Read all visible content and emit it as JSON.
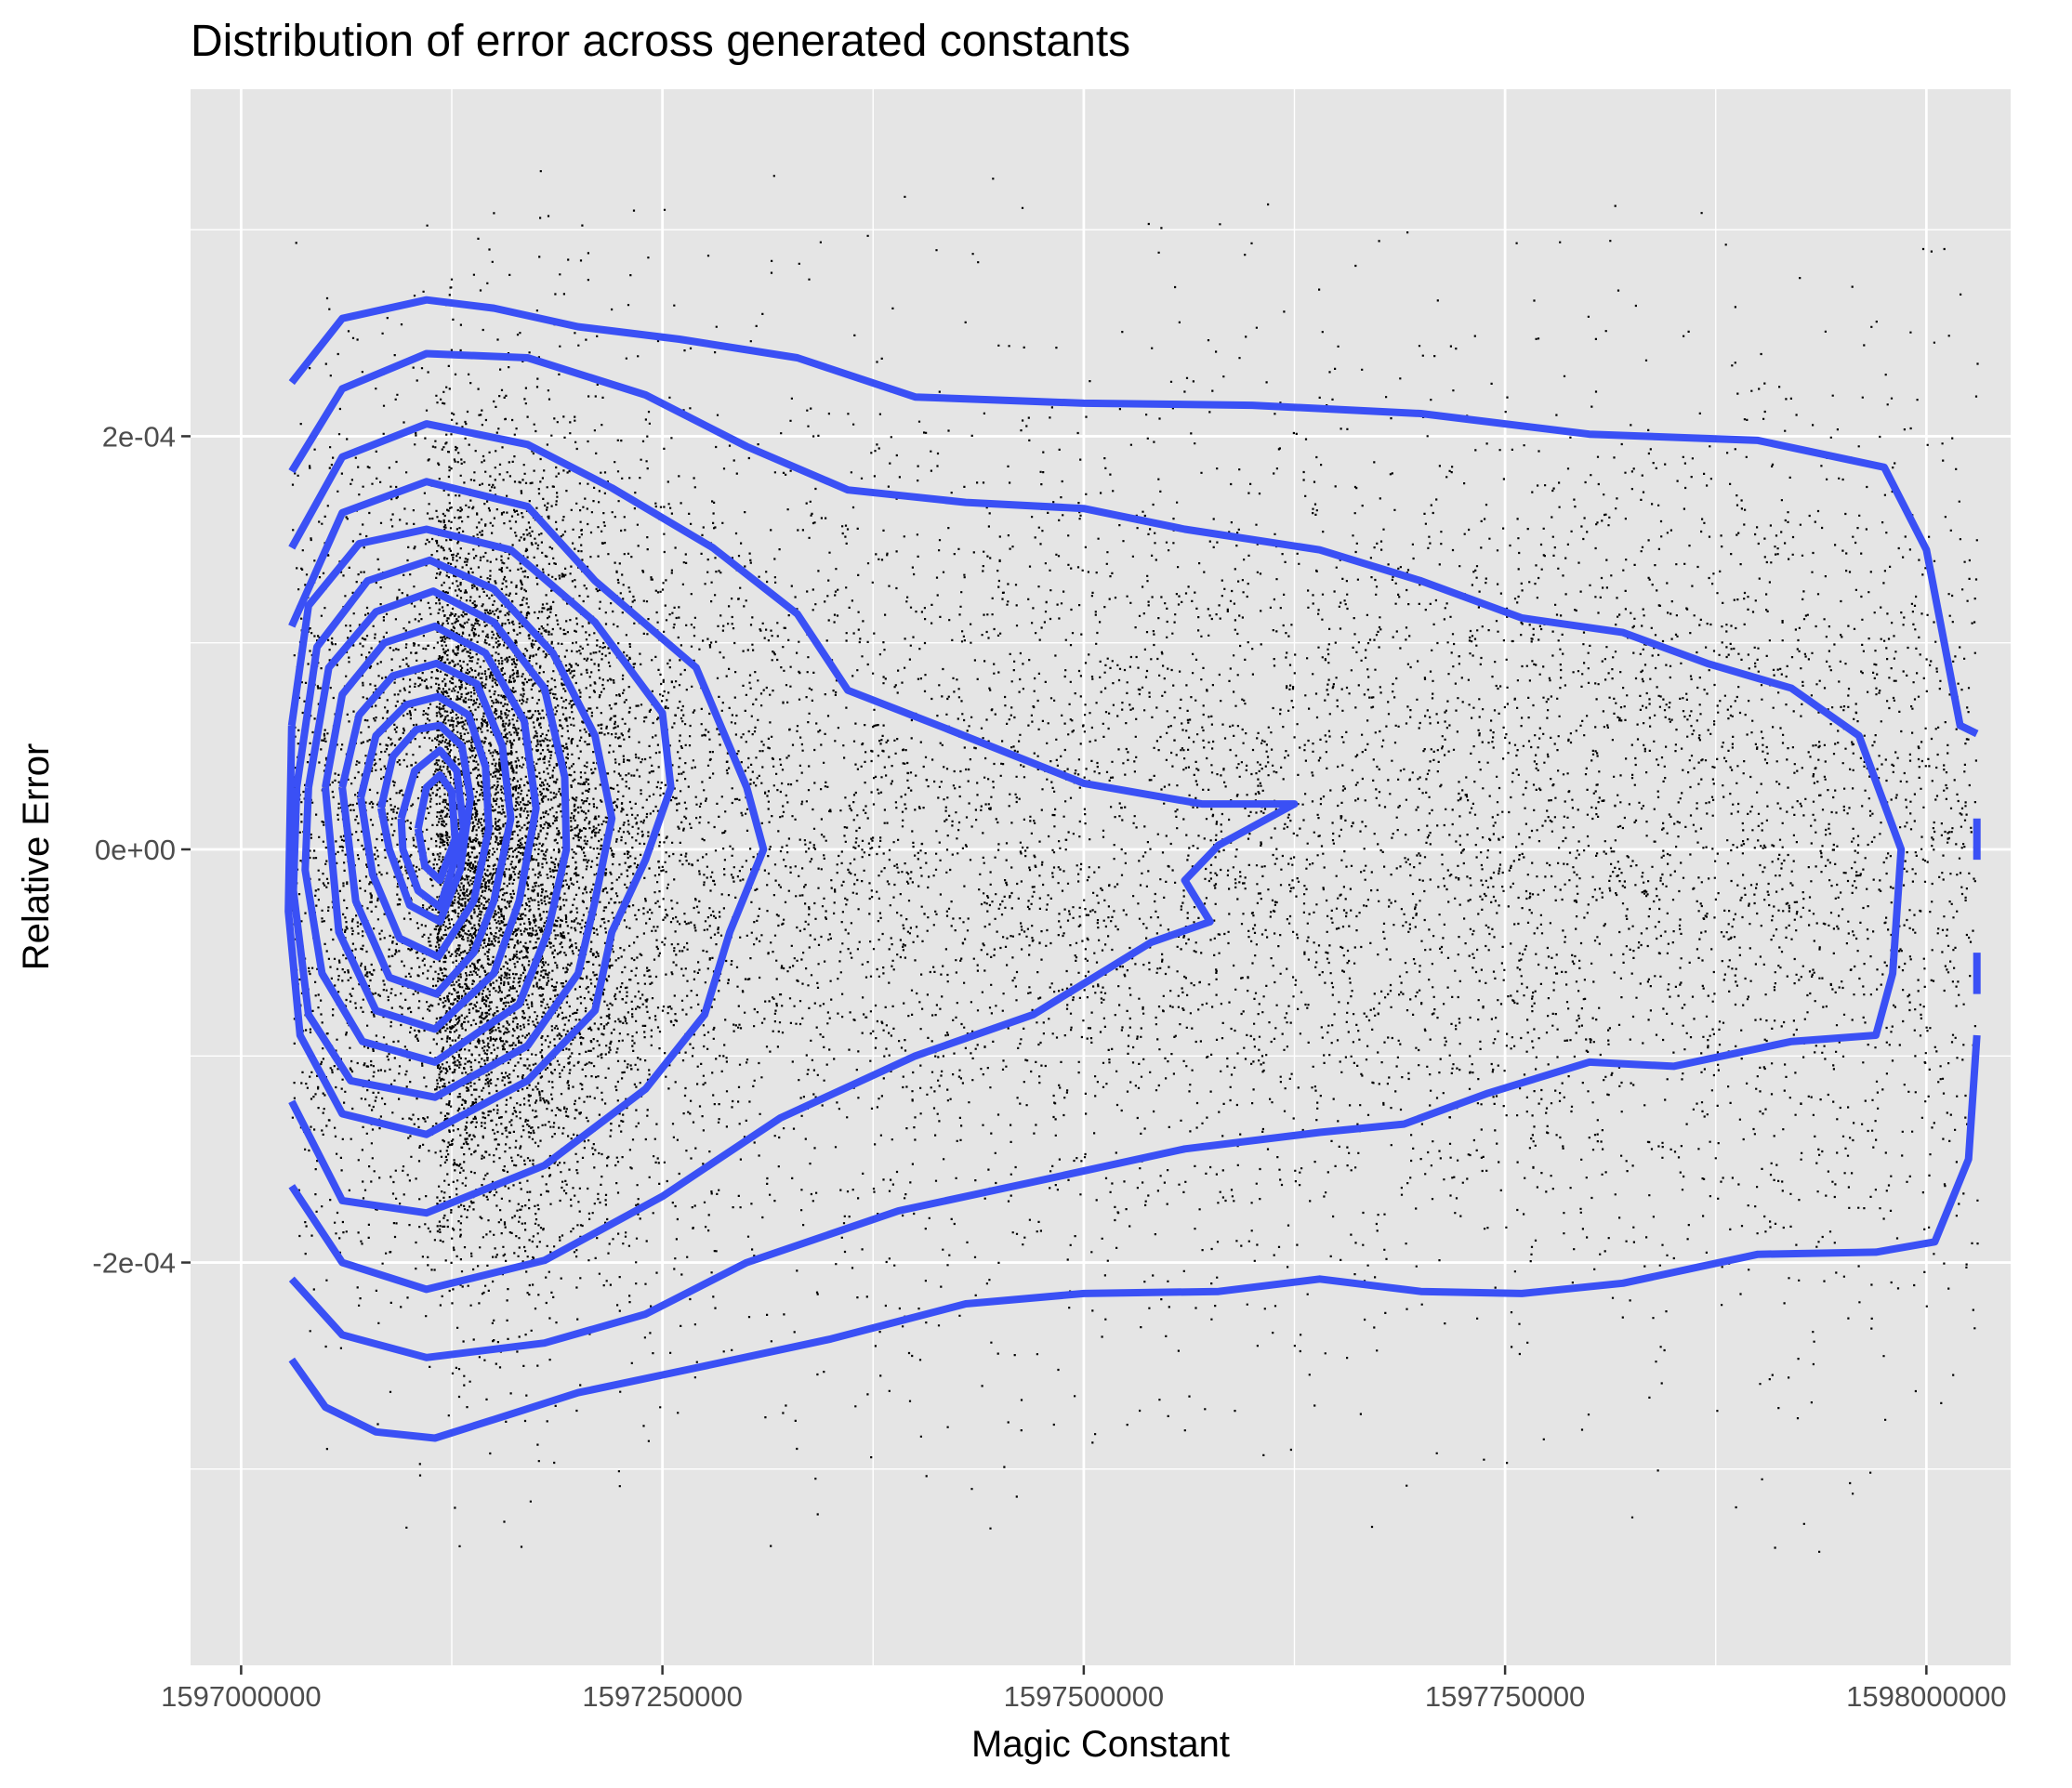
{
  "chart_data": {
    "type": "scatter",
    "title": "Distribution of error across generated constants",
    "xlabel": "Magic Constant",
    "ylabel": "Relative Error",
    "xlim": [
      1596970000,
      1598050000
    ],
    "ylim": [
      -0.000395,
      0.000368
    ],
    "x_ticks": [
      1597000000,
      1597250000,
      1597500000,
      1597750000,
      1598000000
    ],
    "x_tick_labels": [
      "1597000000",
      "1597250000",
      "1597500000",
      "1597750000",
      "1598000000"
    ],
    "y_ticks": [
      -0.0002,
      0,
      0.0002
    ],
    "y_tick_labels": [
      "-2e-04",
      "0e+00",
      "2e-04"
    ],
    "grid": true,
    "legend": "none",
    "colors": {
      "panel": "#e5e5e5",
      "grid": "#ffffff",
      "points": "#000000",
      "contours": "#3a50f5"
    },
    "points": {
      "x_range": [
        1597030000,
        1598030000
      ],
      "y_range": [
        -0.00034,
        0.00033
      ],
      "dense_center": {
        "x": 1597115000,
        "y": 0.0
      },
      "description_count_approx": 60000
    },
    "contours": [
      {
        "level": 1,
        "points": [
          [
            1597030000,
            0.000226
          ],
          [
            1597060000,
            0.000257
          ],
          [
            1597110000,
            0.000266
          ],
          [
            1597150000,
            0.000262
          ],
          [
            1597200000,
            0.000253
          ],
          [
            1597260000,
            0.000247
          ],
          [
            1597330000,
            0.000238
          ],
          [
            1597400000,
            0.000219
          ],
          [
            1597500000,
            0.000216
          ],
          [
            1597600000,
            0.000215
          ],
          [
            1597700000,
            0.000211
          ],
          [
            1597800000,
            0.000201
          ],
          [
            1597900000,
            0.000198
          ],
          [
            1597975000,
            0.000185
          ],
          [
            1598000000,
            0.000145
          ],
          [
            1598020000,
            6e-05
          ],
          [
            1598030000,
            5.6e-05
          ]
        ]
      },
      {
        "level": 1,
        "points": [
          [
            1598030000,
            1.5e-05
          ],
          [
            1598030000,
            -5e-06
          ]
        ]
      },
      {
        "level": 1,
        "points": [
          [
            1598030000,
            -5e-05
          ],
          [
            1598030000,
            -7e-05
          ]
        ]
      },
      {
        "level": 1,
        "points": [
          [
            1598030000,
            -9e-05
          ],
          [
            1598025000,
            -0.00015
          ],
          [
            1598005000,
            -0.00019
          ],
          [
            1597970000,
            -0.000195
          ],
          [
            1597900000,
            -0.000196
          ],
          [
            1597820000,
            -0.00021
          ],
          [
            1597760000,
            -0.000215
          ],
          [
            1597700000,
            -0.000214
          ],
          [
            1597640000,
            -0.000208
          ],
          [
            1597580000,
            -0.000214
          ],
          [
            1597500000,
            -0.000215
          ],
          [
            1597430000,
            -0.00022
          ],
          [
            1597350000,
            -0.000237
          ],
          [
            1597270000,
            -0.000251
          ],
          [
            1597200000,
            -0.000263
          ],
          [
            1597150000,
            -0.000276
          ],
          [
            1597115000,
            -0.000285
          ],
          [
            1597080000,
            -0.000282
          ],
          [
            1597050000,
            -0.00027
          ],
          [
            1597030000,
            -0.000247
          ]
        ]
      },
      {
        "level": 2,
        "points": [
          [
            1597030000,
            0.000183
          ],
          [
            1597060000,
            0.000223
          ],
          [
            1597110000,
            0.00024
          ],
          [
            1597170000,
            0.000238
          ],
          [
            1597240000,
            0.00022
          ],
          [
            1597300000,
            0.000195
          ],
          [
            1597360000,
            0.000174
          ],
          [
            1597430000,
            0.000168
          ],
          [
            1597500000,
            0.000165
          ],
          [
            1597560000,
            0.000155
          ],
          [
            1597640000,
            0.000145
          ],
          [
            1597700000,
            0.00013
          ],
          [
            1597760000,
            0.000112
          ],
          [
            1597820000,
            0.000105
          ],
          [
            1597870000,
            9e-05
          ],
          [
            1597920000,
            7.8e-05
          ],
          [
            1597960000,
            5.5e-05
          ],
          [
            1597985000,
            0.0
          ],
          [
            1597980000,
            -6e-05
          ],
          [
            1597970000,
            -9e-05
          ],
          [
            1597920000,
            -9.3e-05
          ],
          [
            1597850000,
            -0.000105
          ],
          [
            1597800000,
            -0.000103
          ],
          [
            1597740000,
            -0.000118
          ],
          [
            1597690000,
            -0.000133
          ],
          [
            1597640000,
            -0.000137
          ],
          [
            1597560000,
            -0.000145
          ],
          [
            1597470000,
            -0.000161
          ],
          [
            1597390000,
            -0.000175
          ],
          [
            1597300000,
            -0.0002
          ],
          [
            1597240000,
            -0.000225
          ],
          [
            1597180000,
            -0.000239
          ],
          [
            1597110000,
            -0.000246
          ],
          [
            1597060000,
            -0.000235
          ],
          [
            1597030000,
            -0.000208
          ]
        ]
      },
      {
        "level": 3,
        "points": [
          [
            1597030000,
            0.000146
          ],
          [
            1597060000,
            0.00019
          ],
          [
            1597110000,
            0.000206
          ],
          [
            1597170000,
            0.000196
          ],
          [
            1597220000,
            0.000175
          ],
          [
            1597280000,
            0.000146
          ],
          [
            1597330000,
            0.000114
          ],
          [
            1597360000,
            7.7e-05
          ],
          [
            1597420000,
            5.8e-05
          ],
          [
            1597500000,
            3.2e-05
          ],
          [
            1597570000,
            2.2e-05
          ],
          [
            1597625000,
            2.2e-05
          ],
          [
            1597580000,
            2e-06
          ],
          [
            1597560000,
            -1.5e-05
          ],
          [
            1597575000,
            -3.5e-05
          ],
          [
            1597540000,
            -4.5e-05
          ],
          [
            1597470000,
            -8e-05
          ],
          [
            1597400000,
            -0.0001
          ],
          [
            1597320000,
            -0.00013
          ],
          [
            1597250000,
            -0.000168
          ],
          [
            1597180000,
            -0.000199
          ],
          [
            1597110000,
            -0.000213
          ],
          [
            1597060000,
            -0.0002
          ],
          [
            1597030000,
            -0.000163
          ]
        ]
      },
      {
        "level": 4,
        "points": [
          [
            1597030000,
            0.000108
          ],
          [
            1597060000,
            0.000163
          ],
          [
            1597110000,
            0.000178
          ],
          [
            1597170000,
            0.000166
          ],
          [
            1597210000,
            0.00013
          ],
          [
            1597270000,
            8.8e-05
          ],
          [
            1597300000,
            3e-05
          ],
          [
            1597310000,
            0.0
          ],
          [
            1597290000,
            -4e-05
          ],
          [
            1597275000,
            -8e-05
          ],
          [
            1597240000,
            -0.000116
          ],
          [
            1597180000,
            -0.000153
          ],
          [
            1597110000,
            -0.000176
          ],
          [
            1597060000,
            -0.00017
          ],
          [
            1597030000,
            -0.000122
          ]
        ]
      },
      {
        "level": 5,
        "points": [
          [
            1597030000,
            6e-05
          ],
          [
            1597040000,
            0.000118
          ],
          [
            1597070000,
            0.000148
          ],
          [
            1597110000,
            0.000155
          ],
          [
            1597160000,
            0.000145
          ],
          [
            1597210000,
            0.00011
          ],
          [
            1597250000,
            6.6e-05
          ],
          [
            1597255000,
            3e-05
          ],
          [
            1597240000,
            -5e-06
          ],
          [
            1597220000,
            -4e-05
          ],
          [
            1597210000,
            -7.8e-05
          ],
          [
            1597170000,
            -0.000112
          ],
          [
            1597110000,
            -0.000138
          ],
          [
            1597060000,
            -0.000128
          ],
          [
            1597035000,
            -9e-05
          ],
          [
            1597028000,
            -3e-05
          ],
          [
            1597030000,
            6e-05
          ]
        ]
      },
      {
        "level": 6,
        "points": [
          [
            1597033000,
            3e-05
          ],
          [
            1597045000,
            9.8e-05
          ],
          [
            1597075000,
            0.00013
          ],
          [
            1597112000,
            0.00014
          ],
          [
            1597150000,
            0.000126
          ],
          [
            1597185000,
            9.5e-05
          ],
          [
            1597210000,
            5.5e-05
          ],
          [
            1597220000,
            1.5e-05
          ],
          [
            1597210000,
            -2.5e-05
          ],
          [
            1597200000,
            -6e-05
          ],
          [
            1597170000,
            -9.5e-05
          ],
          [
            1597115000,
            -0.00012
          ],
          [
            1597065000,
            -0.000112
          ],
          [
            1597040000,
            -8e-05
          ],
          [
            1597031000,
            -2e-05
          ],
          [
            1597033000,
            3e-05
          ]
        ]
      },
      {
        "level": 7,
        "points": [
          [
            1597040000,
            3e-05
          ],
          [
            1597052000,
            8.8e-05
          ],
          [
            1597080000,
            0.000115
          ],
          [
            1597114000,
            0.000125
          ],
          [
            1597150000,
            0.00011
          ],
          [
            1597180000,
            7.8e-05
          ],
          [
            1597192000,
            3.5e-05
          ],
          [
            1597193000,
            0.0
          ],
          [
            1597182000,
            -4e-05
          ],
          [
            1597165000,
            -7.5e-05
          ],
          [
            1597115000,
            -0.000103
          ],
          [
            1597072000,
            -9.3e-05
          ],
          [
            1597048000,
            -6e-05
          ],
          [
            1597038000,
            -1e-05
          ],
          [
            1597040000,
            3e-05
          ]
        ]
      },
      {
        "level": 8,
        "points": [
          [
            1597050000,
            3e-05
          ],
          [
            1597060000,
            7.5e-05
          ],
          [
            1597085000,
            0.0001
          ],
          [
            1597115000,
            0.000108
          ],
          [
            1597145000,
            9.5e-05
          ],
          [
            1597168000,
            6.2e-05
          ],
          [
            1597175000,
            2e-05
          ],
          [
            1597165000,
            -2.5e-05
          ],
          [
            1597150000,
            -6e-05
          ],
          [
            1597115000,
            -8.7e-05
          ],
          [
            1597080000,
            -7.8e-05
          ],
          [
            1597058000,
            -4e-05
          ],
          [
            1597050000,
            3e-05
          ]
        ]
      },
      {
        "level": 9,
        "points": [
          [
            1597060000,
            3e-05
          ],
          [
            1597070000,
            6.5e-05
          ],
          [
            1597090000,
            8.4e-05
          ],
          [
            1597116000,
            9e-05
          ],
          [
            1597140000,
            8e-05
          ],
          [
            1597155000,
            5e-05
          ],
          [
            1597160000,
            1.5e-05
          ],
          [
            1597150000,
            -2.5e-05
          ],
          [
            1597138000,
            -5e-05
          ],
          [
            1597116000,
            -7e-05
          ],
          [
            1597088000,
            -6.2e-05
          ],
          [
            1597068000,
            -2.5e-05
          ],
          [
            1597060000,
            3e-05
          ]
        ]
      },
      {
        "level": 10,
        "points": [
          [
            1597071000,
            2.5e-05
          ],
          [
            1597080000,
            5.5e-05
          ],
          [
            1597098000,
            7e-05
          ],
          [
            1597117000,
            7.4e-05
          ],
          [
            1597135000,
            6.5e-05
          ],
          [
            1597145000,
            4e-05
          ],
          [
            1597147000,
            1e-05
          ],
          [
            1597138000,
            -2.5e-05
          ],
          [
            1597117000,
            -5.2e-05
          ],
          [
            1597094000,
            -4.3e-05
          ],
          [
            1597078000,
            -1.2e-05
          ],
          [
            1597071000,
            2.5e-05
          ]
        ]
      },
      {
        "level": 11,
        "points": [
          [
            1597083000,
            2e-05
          ],
          [
            1597090000,
            4.5e-05
          ],
          [
            1597104000,
            5.8e-05
          ],
          [
            1597118000,
            6e-05
          ],
          [
            1597131000,
            5e-05
          ],
          [
            1597136000,
            2.5e-05
          ],
          [
            1597130000,
            -1e-05
          ],
          [
            1597118000,
            -3.5e-05
          ],
          [
            1597100000,
            -2.7e-05
          ],
          [
            1597088000,
            0.0
          ],
          [
            1597083000,
            2e-05
          ]
        ]
      },
      {
        "level": 12,
        "points": [
          [
            1597095000,
            1.5e-05
          ],
          [
            1597103000,
            3.8e-05
          ],
          [
            1597118000,
            4.8e-05
          ],
          [
            1597128000,
            3.8e-05
          ],
          [
            1597132000,
            1e-05
          ],
          [
            1597125000,
            -1e-05
          ],
          [
            1597118000,
            -2.8e-05
          ],
          [
            1597105000,
            -2e-05
          ],
          [
            1597096000,
            0.0
          ],
          [
            1597095000,
            1.5e-05
          ]
        ]
      },
      {
        "level": 13,
        "points": [
          [
            1597105000,
            1e-05
          ],
          [
            1597110000,
            3e-05
          ],
          [
            1597118000,
            3.6e-05
          ],
          [
            1597125000,
            2.8e-05
          ],
          [
            1597127000,
            5e-06
          ],
          [
            1597118000,
            -1.5e-05
          ],
          [
            1597109000,
            -8e-06
          ],
          [
            1597105000,
            1e-05
          ]
        ]
      }
    ]
  }
}
